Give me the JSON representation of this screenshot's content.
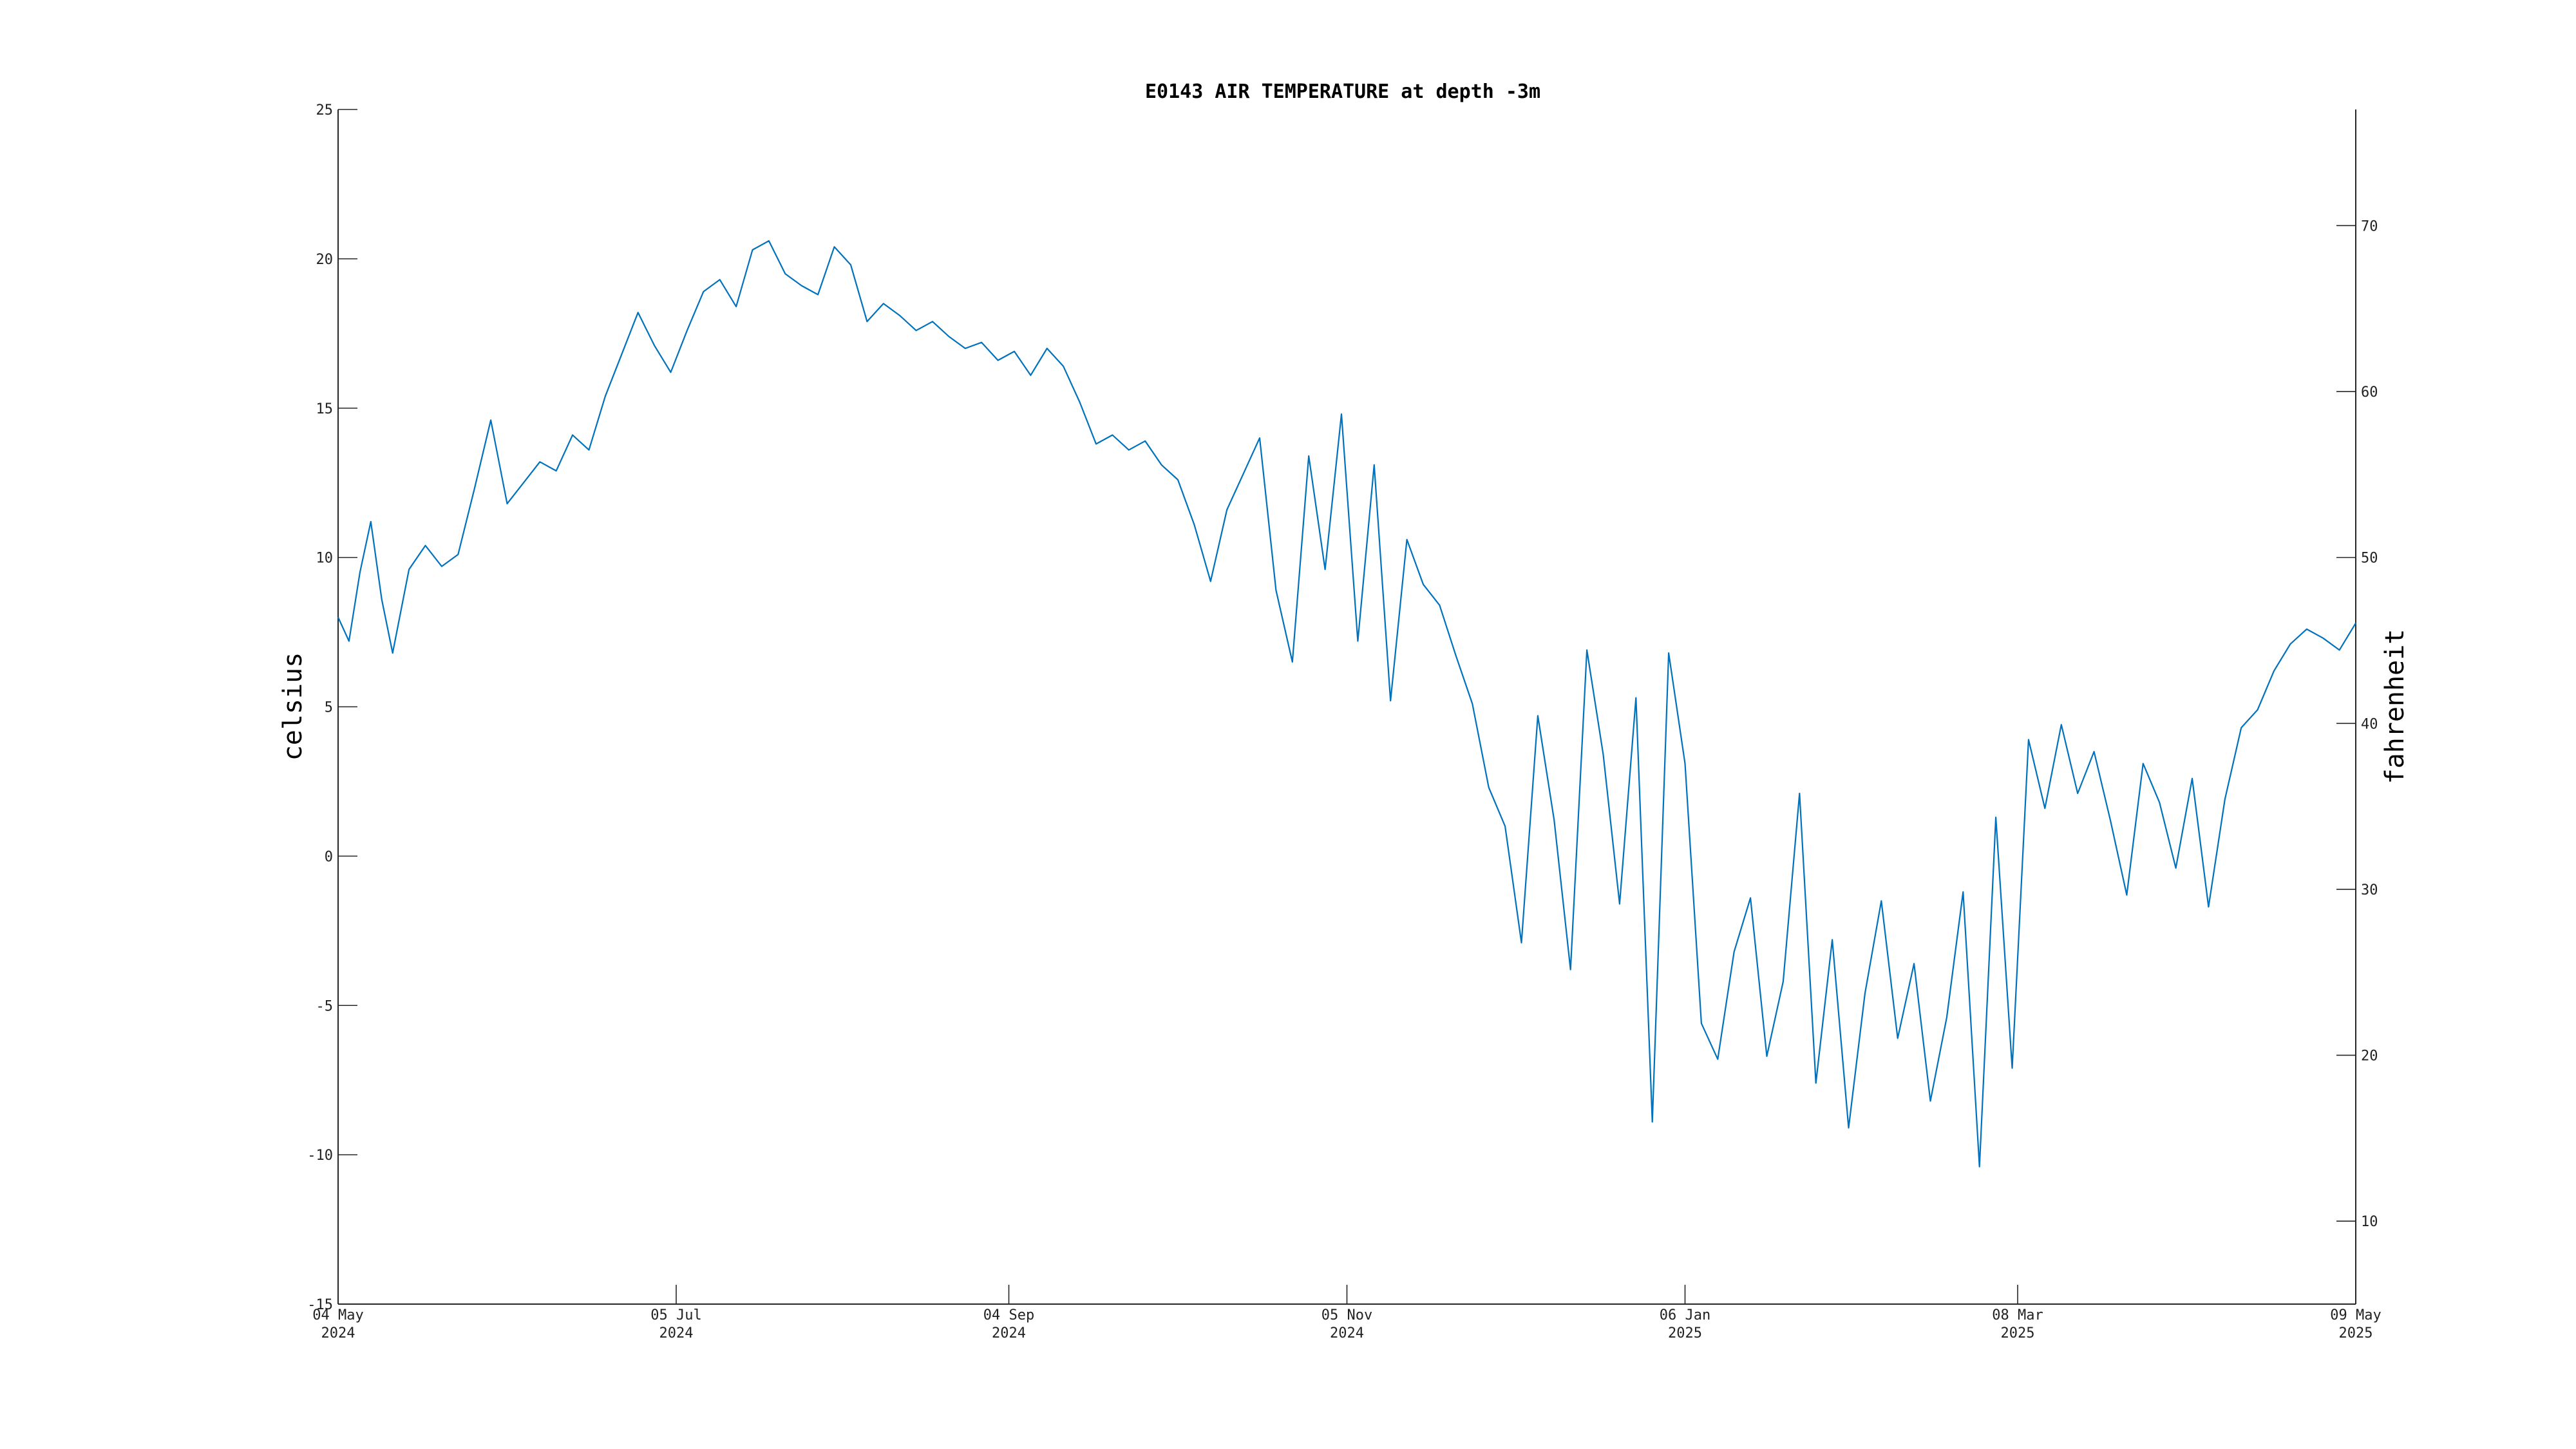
{
  "chart_data": {
    "type": "line",
    "title": "E0143 AIR TEMPERATURE at depth -3m",
    "ylabel": "celsius",
    "ylabel_right": "fahrenheit",
    "xlim": [
      "2024-05-04",
      "2025-05-09"
    ],
    "ylim": [
      -15,
      25
    ],
    "ylim_right": [
      5,
      77
    ],
    "grid": false,
    "color": "#0072bd",
    "x_ticks": [
      {
        "date": "2024-05-04",
        "day": "04 May",
        "year": "2024"
      },
      {
        "date": "2024-07-05",
        "day": "05 Jul",
        "year": "2024"
      },
      {
        "date": "2024-09-04",
        "day": "04 Sep",
        "year": "2024"
      },
      {
        "date": "2024-11-05",
        "day": "05 Nov",
        "year": "2024"
      },
      {
        "date": "2025-01-06",
        "day": "06 Jan",
        "year": "2025"
      },
      {
        "date": "2025-03-08",
        "day": "08 Mar",
        "year": "2025"
      },
      {
        "date": "2025-05-09",
        "day": "09 May",
        "year": "2025"
      }
    ],
    "y_ticks": [
      -15,
      -10,
      -5,
      0,
      5,
      10,
      15,
      20,
      25
    ],
    "y_ticks_right": [
      10,
      20,
      30,
      40,
      50,
      60,
      70
    ],
    "series": [
      {
        "x": [
          "2024-05-04",
          "2024-05-06",
          "2024-05-08",
          "2024-05-10",
          "2024-05-12",
          "2024-05-14",
          "2024-05-17",
          "2024-05-20",
          "2024-05-23",
          "2024-05-26",
          "2024-05-29",
          "2024-06-01",
          "2024-06-04",
          "2024-06-07",
          "2024-06-10",
          "2024-06-13",
          "2024-06-16",
          "2024-06-19",
          "2024-06-22",
          "2024-06-25",
          "2024-06-28",
          "2024-07-01",
          "2024-07-04",
          "2024-07-07",
          "2024-07-10",
          "2024-07-13",
          "2024-07-16",
          "2024-07-19",
          "2024-07-22",
          "2024-07-25",
          "2024-07-28",
          "2024-07-31",
          "2024-08-03",
          "2024-08-06",
          "2024-08-09",
          "2024-08-12",
          "2024-08-15",
          "2024-08-18",
          "2024-08-21",
          "2024-08-24",
          "2024-08-27",
          "2024-08-30",
          "2024-09-02",
          "2024-09-05",
          "2024-09-08",
          "2024-09-11",
          "2024-09-14",
          "2024-09-17",
          "2024-09-20",
          "2024-09-23",
          "2024-09-26",
          "2024-09-29",
          "2024-10-02",
          "2024-10-05",
          "2024-10-08",
          "2024-10-11",
          "2024-10-14",
          "2024-10-17",
          "2024-10-20",
          "2024-10-23",
          "2024-10-26",
          "2024-10-29",
          "2024-11-01",
          "2024-11-04",
          "2024-11-07",
          "2024-11-10",
          "2024-11-13",
          "2024-11-16",
          "2024-11-19",
          "2024-11-22",
          "2024-11-25",
          "2024-11-28",
          "2024-12-01",
          "2024-12-04",
          "2024-12-07",
          "2024-12-10",
          "2024-12-13",
          "2024-12-16",
          "2024-12-19",
          "2024-12-22",
          "2024-12-25",
          "2024-12-28",
          "2024-12-31",
          "2025-01-03",
          "2025-01-06",
          "2025-01-09",
          "2025-01-12",
          "2025-01-15",
          "2025-01-18",
          "2025-01-21",
          "2025-01-24",
          "2025-01-27",
          "2025-01-30",
          "2025-02-02",
          "2025-02-05",
          "2025-02-08",
          "2025-02-11",
          "2025-02-14",
          "2025-02-17",
          "2025-02-20",
          "2025-02-23",
          "2025-02-26",
          "2025-03-01",
          "2025-03-04",
          "2025-03-07",
          "2025-03-10",
          "2025-03-13",
          "2025-03-16",
          "2025-03-19",
          "2025-03-22",
          "2025-03-25",
          "2025-03-28",
          "2025-03-31",
          "2025-04-03",
          "2025-04-06",
          "2025-04-09",
          "2025-04-12",
          "2025-04-15",
          "2025-04-18",
          "2025-04-21",
          "2025-04-24",
          "2025-04-27",
          "2025-04-30",
          "2025-05-03",
          "2025-05-06",
          "2025-05-09"
        ],
        "y": [
          8.0,
          7.2,
          9.5,
          11.2,
          8.6,
          6.8,
          9.6,
          10.4,
          9.7,
          10.1,
          12.3,
          14.6,
          11.8,
          12.5,
          13.2,
          12.9,
          14.1,
          13.6,
          15.4,
          16.8,
          18.2,
          17.1,
          16.2,
          17.6,
          18.9,
          19.3,
          18.4,
          20.3,
          20.6,
          19.5,
          19.1,
          18.8,
          20.4,
          19.8,
          17.9,
          18.5,
          18.1,
          17.6,
          17.9,
          17.4,
          17.0,
          17.2,
          16.6,
          16.9,
          16.1,
          17.0,
          16.4,
          15.2,
          13.8,
          14.1,
          13.6,
          13.9,
          13.1,
          12.6,
          11.1,
          9.2,
          11.6,
          12.8,
          14.0,
          8.9,
          6.5,
          13.4,
          9.6,
          14.8,
          7.2,
          13.1,
          5.2,
          10.6,
          9.1,
          8.4,
          6.7,
          5.1,
          2.3,
          1.0,
          -2.9,
          4.7,
          1.2,
          -3.8,
          6.9,
          3.4,
          -1.6,
          5.3,
          -8.9,
          6.8,
          3.1,
          -5.6,
          -6.8,
          -3.2,
          -1.4,
          -6.7,
          -4.2,
          2.1,
          -7.6,
          -2.8,
          -9.1,
          -4.6,
          -1.5,
          -6.1,
          -3.6,
          -8.2,
          -5.4,
          -1.2,
          -10.4,
          1.3,
          -7.1,
          3.9,
          1.6,
          4.4,
          2.1,
          3.5,
          1.2,
          -1.3,
          3.1,
          1.8,
          -0.4,
          2.6,
          -1.7,
          1.9,
          4.3,
          4.9,
          6.2,
          7.1,
          7.6,
          7.3,
          6.9,
          7.8
        ]
      }
    ]
  }
}
